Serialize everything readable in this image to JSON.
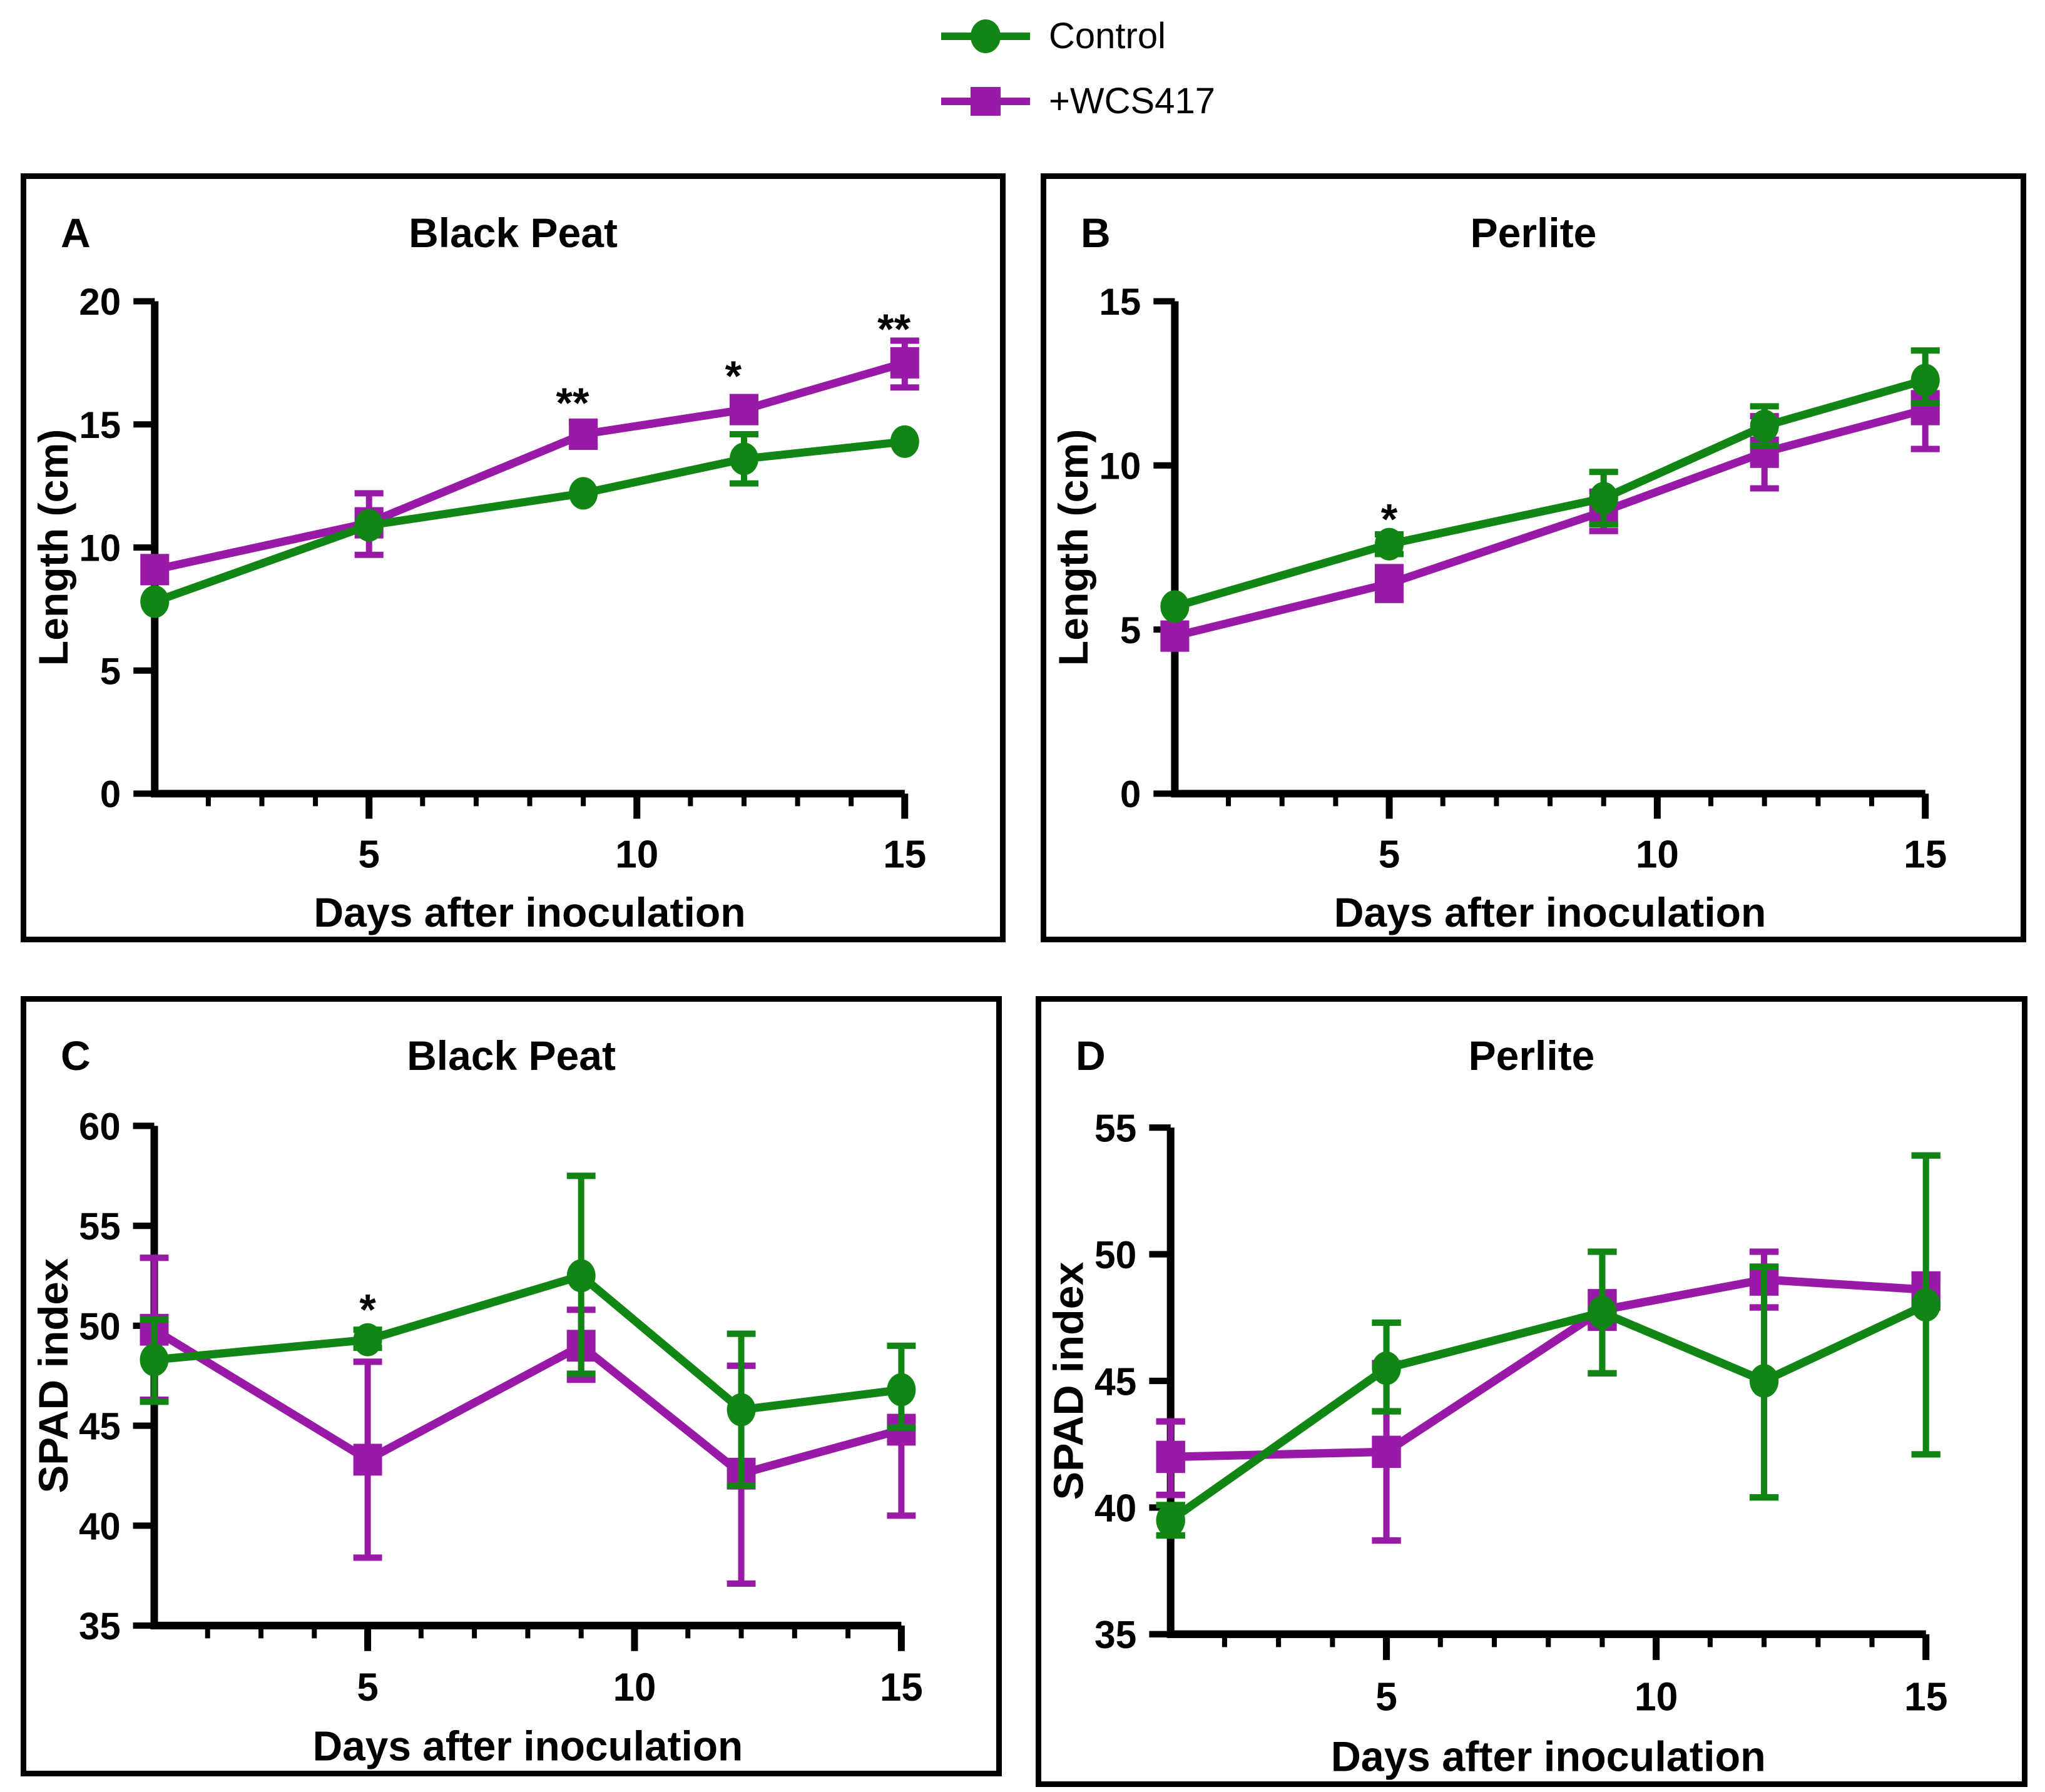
{
  "figure": {
    "background": "#ffffff",
    "frame_color": "#000000",
    "green": "#128614",
    "purple": "#9A1AA8"
  },
  "legend": {
    "items": [
      {
        "label": "Control",
        "marker": "circle",
        "color": "#128614"
      },
      {
        "label": "+WCS417",
        "marker": "square",
        "color": "#9A1AA8"
      }
    ]
  },
  "chart_data": [
    {
      "type": "line",
      "panel_label": "A",
      "title": "Black Peat",
      "xlabel": "Days after inoculation",
      "ylabel": "Length (cm)",
      "x": [
        1,
        5,
        9,
        12,
        15
      ],
      "xlim": [
        1,
        15
      ],
      "xticks_major": [
        5,
        10,
        15
      ],
      "xticks_minor": [
        2,
        3,
        4,
        6,
        7,
        8,
        9,
        11,
        12,
        13,
        14
      ],
      "ylim": [
        0,
        20
      ],
      "yticks": [
        0,
        5,
        10,
        15,
        20
      ],
      "grid": false,
      "series": [
        {
          "name": "Control",
          "marker": "circle",
          "color": "#128614",
          "values": [
            7.8,
            10.9,
            12.2,
            13.6,
            14.3
          ],
          "err_down": [
            0,
            0,
            0,
            1.0,
            0
          ],
          "err_up": [
            0,
            0,
            0,
            1.0,
            0
          ]
        },
        {
          "name": "+WCS417",
          "marker": "square",
          "color": "#9A1AA8",
          "values": [
            9.1,
            11.0,
            14.6,
            15.6,
            17.5
          ],
          "err_down": [
            0,
            1.3,
            0.5,
            0,
            1.0
          ],
          "err_up": [
            0,
            1.2,
            0.5,
            0,
            0.9
          ]
        }
      ],
      "annotations": [
        {
          "x": 8.8,
          "y": 16.2,
          "text": "**"
        },
        {
          "x": 11.8,
          "y": 17.3,
          "text": "*"
        },
        {
          "x": 14.8,
          "y": 19.2,
          "text": "**"
        }
      ]
    },
    {
      "type": "line",
      "panel_label": "B",
      "title": "Perlite",
      "xlabel": "Days after inoculation",
      "ylabel": "Length (cm)",
      "x": [
        1,
        5,
        9,
        12,
        15
      ],
      "xlim": [
        1,
        15
      ],
      "xticks_major": [
        5,
        10,
        15
      ],
      "xticks_minor": [
        2,
        3,
        4,
        6,
        7,
        8,
        9,
        11,
        12,
        13,
        14
      ],
      "ylim": [
        0,
        15
      ],
      "yticks": [
        0,
        5,
        10,
        15
      ],
      "grid": false,
      "series": [
        {
          "name": "Control",
          "marker": "circle",
          "color": "#128614",
          "values": [
            5.7,
            7.6,
            9.0,
            11.2,
            12.6
          ],
          "err_down": [
            0,
            0.3,
            0.8,
            0.6,
            0.7
          ],
          "err_up": [
            0,
            0.3,
            0.8,
            0.6,
            0.9
          ]
        },
        {
          "name": "+WCS417",
          "marker": "square",
          "color": "#9A1AA8",
          "values": [
            4.8,
            6.4,
            8.6,
            10.4,
            11.7
          ],
          "err_down": [
            0,
            0.5,
            0.6,
            1.1,
            1.2
          ],
          "err_up": [
            0,
            0.5,
            0.6,
            1.1,
            0.5
          ]
        }
      ],
      "annotations": [
        {
          "x": 5,
          "y": 8.6,
          "text": "*"
        }
      ]
    },
    {
      "type": "line",
      "panel_label": "C",
      "title": "Black Peat",
      "xlabel": "Days after inoculation",
      "ylabel": "SPAD index",
      "x": [
        1,
        5,
        9,
        12,
        15
      ],
      "xlim": [
        1,
        15
      ],
      "xticks_major": [
        5,
        10,
        15
      ],
      "xticks_minor": [
        2,
        3,
        4,
        6,
        7,
        8,
        9,
        11,
        12,
        13,
        14
      ],
      "ylim": [
        35,
        60
      ],
      "yticks": [
        35,
        40,
        45,
        50,
        55,
        60
      ],
      "grid": false,
      "series": [
        {
          "name": "Control",
          "marker": "circle",
          "color": "#128614",
          "values": [
            48.3,
            49.3,
            52.5,
            45.8,
            46.8
          ],
          "err_down": [
            2.1,
            0.4,
            4.9,
            3.8,
            1.9
          ],
          "err_up": [
            2.0,
            0.5,
            5.0,
            3.8,
            2.2
          ]
        },
        {
          "name": "+WCS417",
          "marker": "square",
          "color": "#9A1AA8",
          "values": [
            49.8,
            43.3,
            49.0,
            42.6,
            44.8
          ],
          "err_down": [
            3.5,
            4.9,
            1.7,
            5.5,
            4.3
          ],
          "err_up": [
            3.6,
            4.9,
            1.8,
            5.4,
            0.5
          ]
        }
      ],
      "annotations": [
        {
          "x": 5,
          "y": 51.2,
          "text": "*"
        }
      ]
    },
    {
      "type": "line",
      "panel_label": "D",
      "title": "Perlite",
      "xlabel": "Days after inoculation",
      "ylabel": "SPAD index",
      "x": [
        1,
        5,
        9,
        12,
        15
      ],
      "xlim": [
        1,
        15
      ],
      "xticks_major": [
        5,
        10,
        15
      ],
      "xticks_minor": [
        2,
        3,
        4,
        6,
        7,
        8,
        9,
        11,
        12,
        13,
        14
      ],
      "ylim": [
        35,
        55
      ],
      "yticks": [
        35,
        40,
        45,
        50,
        55
      ],
      "grid": false,
      "series": [
        {
          "name": "Control",
          "marker": "circle",
          "color": "#128614",
          "values": [
            39.5,
            45.5,
            47.7,
            45.0,
            48.0
          ],
          "err_down": [
            0.6,
            1.7,
            2.4,
            4.6,
            5.9
          ],
          "err_up": [
            0.6,
            1.8,
            2.4,
            4.5,
            5.9
          ]
        },
        {
          "name": "+WCS417",
          "marker": "square",
          "color": "#9A1AA8",
          "values": [
            42.0,
            42.2,
            47.8,
            49.0,
            48.6
          ],
          "err_down": [
            1.5,
            3.5,
            0.7,
            1.1,
            0.7
          ],
          "err_up": [
            1.4,
            3.5,
            0.7,
            1.1,
            0.6
          ]
        }
      ],
      "annotations": []
    }
  ]
}
